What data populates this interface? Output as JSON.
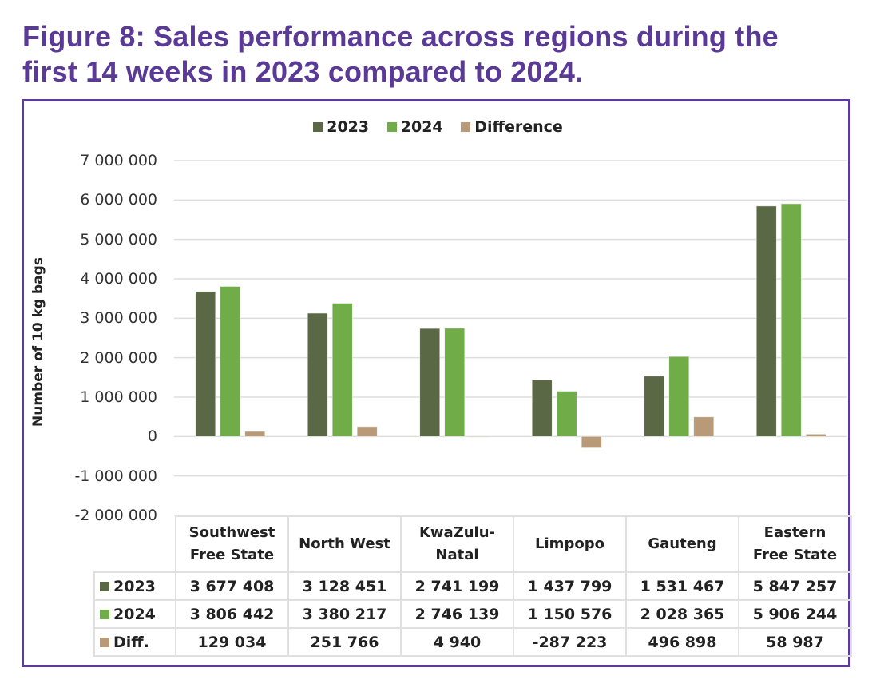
{
  "figure": {
    "title_line1": "Figure 8: Sales performance across regions during the",
    "title_line2": "first 14 weeks in 2023 compared to 2024."
  },
  "colors": {
    "title": "#5a3a96",
    "frame": "#5b3b9d",
    "series_2023": "#5a6846",
    "series_2024": "#70ac47",
    "series_diff": "#b89a78",
    "grid": "#dddddd"
  },
  "chart_data": {
    "type": "bar",
    "title": "Figure 8: Sales performance across regions during the first 14 weeks in 2023 compared to 2024.",
    "xlabel": "",
    "ylabel": "Number of 10 kg bags",
    "ylim": [
      -2000000,
      7000000
    ],
    "yticks": [
      7000000,
      6000000,
      5000000,
      4000000,
      3000000,
      2000000,
      1000000,
      0,
      -1000000,
      -2000000
    ],
    "ytick_labels": [
      "7 000 000",
      "6 000 000",
      "5 000 000",
      "4 000 000",
      "3 000 000",
      "2 000 000",
      "1 000 000",
      "0",
      "-1 000 000",
      "-2 000 000"
    ],
    "grid": true,
    "legend_position": "top-center",
    "categories": [
      "Southwest Free State",
      "North West",
      "KwaZulu-Natal",
      "Limpopo",
      "Gauteng",
      "Eastern Free State"
    ],
    "category_lines": [
      [
        "Southwest",
        "Free State"
      ],
      [
        "North West"
      ],
      [
        "KwaZulu-",
        "Natal"
      ],
      [
        "Limpopo"
      ],
      [
        "Gauteng"
      ],
      [
        "Eastern",
        "Free State"
      ]
    ],
    "series": [
      {
        "name": "2023",
        "table_label": "2023",
        "color": "#5a6846",
        "values": [
          3677408,
          3128451,
          2741199,
          1437799,
          1531467,
          5847257
        ],
        "labels": [
          "3 677 408",
          "3 128 451",
          "2 741 199",
          "1 437 799",
          "1 531 467",
          "5 847 257"
        ]
      },
      {
        "name": "2024",
        "table_label": "2024",
        "color": "#70ac47",
        "values": [
          3806442,
          3380217,
          2746139,
          1150576,
          2028365,
          5906244
        ],
        "labels": [
          "3 806 442",
          "3 380 217",
          "2 746 139",
          "1 150 576",
          "2 028 365",
          "5 906 244"
        ]
      },
      {
        "name": "Difference",
        "table_label": "Diff.",
        "color": "#b89a78",
        "values": [
          129034,
          251766,
          4940,
          -287223,
          496898,
          58987
        ],
        "labels": [
          "129 034",
          "251 766",
          "4 940",
          "-287 223",
          "496 898",
          "58 987"
        ]
      }
    ]
  }
}
